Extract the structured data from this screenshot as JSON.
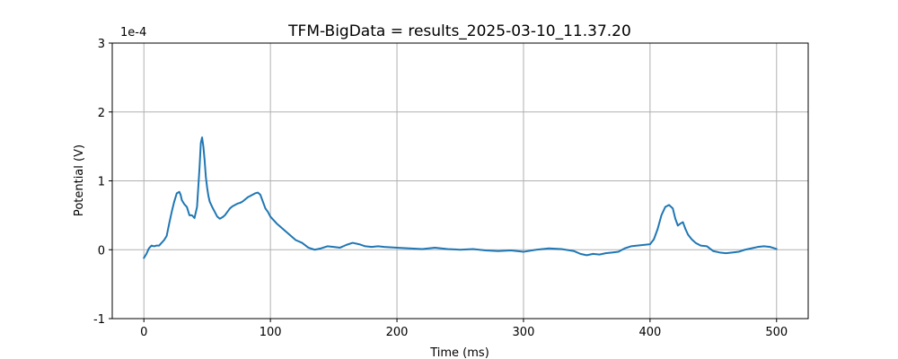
{
  "chart_data": {
    "type": "line",
    "title": "TFM-BigData = results_2025-03-10_11.37.20",
    "xlabel": "Time (ms)",
    "ylabel": "Potential (V)",
    "y_offset_label": "1e-4",
    "xlim": [
      -25,
      525
    ],
    "ylim": [
      -1,
      3
    ],
    "x_ticks": [
      0,
      100,
      200,
      300,
      400,
      500
    ],
    "y_ticks": [
      -1,
      0,
      1,
      2,
      3
    ],
    "x_tick_labels": [
      "0",
      "100",
      "200",
      "300",
      "400",
      "500"
    ],
    "y_tick_labels": [
      "-1",
      "0",
      "1",
      "2",
      "3"
    ],
    "grid": true,
    "line_color": "#1f77b4",
    "series": [
      {
        "x": [
          0,
          2,
          4,
          6,
          8,
          10,
          12,
          14,
          16,
          18,
          20,
          22,
          24,
          26,
          28,
          29,
          30,
          32,
          34,
          36,
          38,
          40,
          42,
          44,
          45,
          46,
          47,
          48,
          49,
          50,
          51,
          52,
          54,
          56,
          58,
          60,
          62,
          64,
          66,
          68,
          70,
          72,
          74,
          76,
          78,
          80,
          82,
          84,
          86,
          88,
          90,
          92,
          94,
          96,
          98,
          100,
          105,
          110,
          115,
          120,
          125,
          130,
          135,
          140,
          145,
          150,
          155,
          160,
          165,
          170,
          175,
          180,
          185,
          190,
          200,
          210,
          220,
          230,
          240,
          250,
          260,
          270,
          280,
          290,
          300,
          310,
          320,
          330,
          340,
          345,
          350,
          355,
          360,
          365,
          370,
          375,
          380,
          385,
          390,
          395,
          400,
          403,
          406,
          409,
          412,
          415,
          418,
          420,
          422,
          424,
          426,
          428,
          430,
          433,
          436,
          440,
          445,
          450,
          455,
          460,
          465,
          470,
          475,
          480,
          485,
          490,
          495,
          500
        ],
        "y": [
          -0.12,
          -0.06,
          0.02,
          0.06,
          0.05,
          0.06,
          0.06,
          0.1,
          0.14,
          0.2,
          0.38,
          0.55,
          0.7,
          0.82,
          0.84,
          0.8,
          0.72,
          0.66,
          0.62,
          0.5,
          0.5,
          0.46,
          0.62,
          1.2,
          1.55,
          1.63,
          1.5,
          1.3,
          1.05,
          0.9,
          0.78,
          0.7,
          0.62,
          0.55,
          0.48,
          0.45,
          0.47,
          0.5,
          0.55,
          0.6,
          0.63,
          0.65,
          0.67,
          0.68,
          0.7,
          0.73,
          0.76,
          0.78,
          0.8,
          0.82,
          0.83,
          0.8,
          0.7,
          0.6,
          0.55,
          0.48,
          0.38,
          0.3,
          0.22,
          0.14,
          0.1,
          0.03,
          0.0,
          0.02,
          0.05,
          0.04,
          0.03,
          0.07,
          0.1,
          0.08,
          0.05,
          0.04,
          0.05,
          0.04,
          0.03,
          0.02,
          0.01,
          0.03,
          0.01,
          0.0,
          0.01,
          -0.01,
          -0.02,
          -0.01,
          -0.03,
          0.0,
          0.02,
          0.01,
          -0.02,
          -0.06,
          -0.08,
          -0.06,
          -0.07,
          -0.05,
          -0.04,
          -0.03,
          0.02,
          0.05,
          0.06,
          0.07,
          0.08,
          0.15,
          0.3,
          0.5,
          0.62,
          0.65,
          0.6,
          0.45,
          0.35,
          0.38,
          0.4,
          0.3,
          0.22,
          0.15,
          0.1,
          0.06,
          0.05,
          -0.02,
          -0.04,
          -0.05,
          -0.04,
          -0.03,
          0.0,
          0.02,
          0.04,
          0.05,
          0.04,
          0.01
        ]
      }
    ]
  }
}
